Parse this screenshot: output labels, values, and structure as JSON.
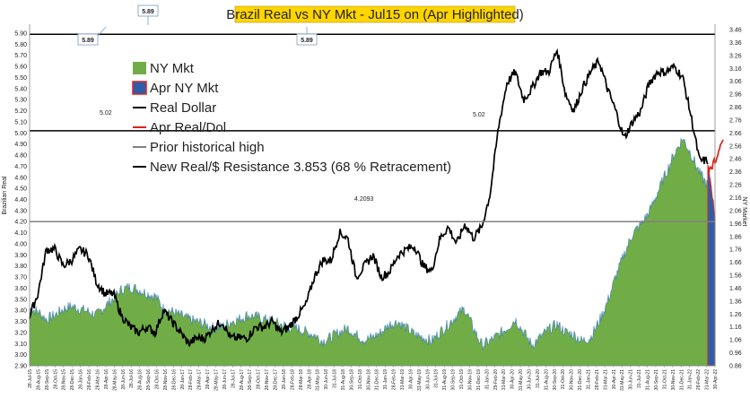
{
  "chart_data": {
    "type": "line",
    "title": "Brazil Real vs NY Mkt - Jul15 on (Apr Highlighted)",
    "ylabel_left": "Brazilian Real",
    "ylabel_right": "NY Market",
    "ylim_left": [
      2.9,
      5.95
    ],
    "yticks_left": [
      2.9,
      3.0,
      3.1,
      3.2,
      3.3,
      3.4,
      3.5,
      3.6,
      3.7,
      3.8,
      3.9,
      4.0,
      4.1,
      4.2,
      4.3,
      4.4,
      4.5,
      4.6,
      4.7,
      4.8,
      4.9,
      5.0,
      5.1,
      5.2,
      5.3,
      5.4,
      5.5,
      5.6,
      5.7,
      5.8,
      5.9
    ],
    "ylim_right": [
      0.86,
      3.5
    ],
    "yticks_right": [
      0.86,
      0.96,
      1.06,
      1.16,
      1.26,
      1.36,
      1.46,
      1.56,
      1.66,
      1.76,
      1.86,
      1.96,
      2.06,
      2.16,
      2.26,
      2.36,
      2.46,
      2.56,
      2.66,
      2.76,
      2.86,
      2.96,
      3.06,
      3.16,
      3.26,
      3.36,
      3.46
    ],
    "x_tick_labels": [
      "28-Jul-15",
      "28-Aug-15",
      "28-Sep-15",
      "28-Oct-15",
      "28-Nov-15",
      "28-Dec-15",
      "28-Jan-16",
      "28-Feb-16",
      "28-Mar-16",
      "28-Apr-16",
      "28-May-16",
      "28-Jun-16",
      "28-Jul-16",
      "28-Aug-16",
      "28-Sep-16",
      "28-Oct-16",
      "28-Nov-16",
      "28-Dec-16",
      "28-Jan-17",
      "28-Feb-17",
      "28-Mar-17",
      "28-Apr-17",
      "28-May-17",
      "28-Jun-17",
      "28-Jul-17",
      "28-Aug-17",
      "28-Sep-17",
      "28-Oct-17",
      "28-Nov-17",
      "28-Dec-17",
      "28-Jan-18",
      "28-Feb-18",
      "28-Mar-18",
      "28-Apr-18",
      "31-May-18",
      "30-Jun-18",
      "31-Jul-18",
      "31-Aug-18",
      "30-Sep-18",
      "31-Oct-18",
      "30-Nov-18",
      "31-Dec-18",
      "31-Jan-19",
      "28-Feb-19",
      "31-Mar-19",
      "30-Apr-19",
      "31-May-19",
      "30-Jun-19",
      "31-Jul-19",
      "31-Aug-19",
      "30-Sep-19",
      "31-Oct-19",
      "30-Nov-19",
      "31-Dec-19",
      "31-Jan-20",
      "29-Feb-20",
      "31-Mar-20",
      "30-Apr-20",
      "31-May-20",
      "30-Jun-20",
      "31-Jul-20",
      "31-Aug-20",
      "30-Sep-20",
      "31-Oct-20",
      "30-Nov-20",
      "31-Dec-20",
      "31-Jan-21",
      "28-Feb-21",
      "31-Mar-21",
      "30-Apr-21",
      "31-May-21",
      "30-Jun-21",
      "31-Jul-21",
      "31-Aug-21",
      "30-Sep-21",
      "31-Oct-21",
      "30-Nov-21",
      "31-Dec-21",
      "31-Jan-22",
      "28-Feb-22",
      "31-Mar-22",
      "30-Apr-22"
    ],
    "real_dollar_monthly": [
      3.35,
      3.55,
      3.95,
      3.95,
      3.8,
      3.85,
      3.95,
      3.9,
      3.65,
      3.55,
      3.55,
      3.35,
      3.25,
      3.2,
      3.25,
      3.2,
      3.4,
      3.3,
      3.2,
      3.1,
      3.15,
      3.15,
      3.25,
      3.3,
      3.15,
      3.15,
      3.15,
      3.25,
      3.25,
      3.3,
      3.2,
      3.25,
      3.35,
      3.45,
      3.7,
      3.85,
      3.85,
      4.1,
      4.05,
      3.7,
      3.8,
      3.9,
      3.7,
      3.75,
      3.9,
      3.95,
      3.98,
      3.8,
      3.75,
      4.05,
      4.15,
      4.0,
      4.18,
      4.05,
      4.15,
      4.45,
      5.05,
      5.45,
      5.55,
      5.3,
      5.4,
      5.55,
      5.55,
      5.75,
      5.35,
      5.2,
      5.4,
      5.55,
      5.65,
      5.4,
      5.2,
      4.95,
      5.1,
      5.2,
      5.45,
      5.55,
      5.55,
      5.6,
      5.5,
      5.15,
      4.75,
      4.75
    ],
    "ny_mkt_monthly": [
      1.3,
      1.28,
      1.22,
      1.25,
      1.3,
      1.32,
      1.3,
      1.28,
      1.25,
      1.32,
      1.38,
      1.45,
      1.47,
      1.45,
      1.42,
      1.4,
      1.3,
      1.28,
      1.25,
      1.22,
      1.2,
      1.18,
      1.15,
      1.16,
      1.2,
      1.22,
      1.25,
      1.24,
      1.22,
      1.2,
      1.18,
      1.16,
      1.15,
      1.12,
      1.1,
      1.05,
      1.08,
      1.12,
      1.15,
      1.1,
      1.06,
      1.08,
      1.12,
      1.18,
      1.2,
      1.15,
      1.1,
      1.08,
      1.05,
      1.12,
      1.18,
      1.25,
      1.3,
      1.15,
      1.02,
      1.05,
      1.1,
      1.15,
      1.22,
      1.12,
      1.02,
      1.08,
      1.14,
      1.18,
      1.12,
      1.1,
      1.05,
      1.08,
      1.2,
      1.35,
      1.55,
      1.72,
      1.88,
      1.95,
      2.05,
      2.2,
      2.35,
      2.5,
      2.62,
      2.5,
      2.35,
      2.25
    ],
    "april_ny_mkt_daily": [
      2.4,
      2.38,
      2.36,
      2.33,
      2.3,
      2.27,
      2.24,
      2.2,
      2.16,
      2.12,
      2.08,
      2.04,
      2.0
    ],
    "april_real_dol_daily": [
      4.62,
      4.65,
      4.7,
      4.66,
      4.72,
      4.75,
      4.7,
      4.78,
      4.82,
      4.86,
      4.9,
      4.93,
      4.95
    ],
    "reference_lines": {
      "prior_historical_high": 4.2,
      "resistance_high": 5.89,
      "resistance_mid": 5.02
    },
    "annotations": [
      "5.89",
      "5.89",
      "5.89",
      "5.02",
      "5.02",
      "4.2093"
    ],
    "legend": [
      {
        "label": "NY Mkt",
        "color": "#70ad47",
        "kind": "area"
      },
      {
        "label": "Apr  NY Mkt",
        "color": "#2e5ea8",
        "kind": "area-outlined"
      },
      {
        "label": "Real Dollar",
        "color": "#000000",
        "kind": "line"
      },
      {
        "label": "Apr Real/Dol",
        "color": "#e0201a",
        "kind": "line"
      },
      {
        "label": "Prior historical high",
        "color": "#808080",
        "kind": "line"
      },
      {
        "label": "New Real/$ Resistance 3.853 (68 % Retracement)",
        "color": "#000000",
        "kind": "line"
      }
    ],
    "legend_position": "upper-left",
    "grid": false
  }
}
